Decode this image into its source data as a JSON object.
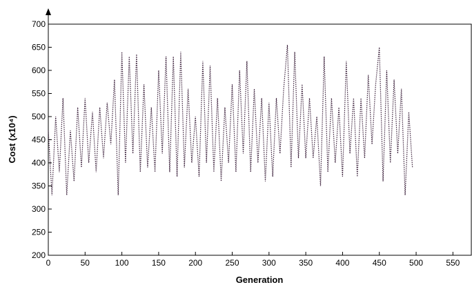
{
  "chart_data": {
    "type": "line",
    "xlabel": "Generation",
    "ylabel": "Cost (x10⁴)",
    "xlim": [
      0,
      575
    ],
    "ylim": [
      200,
      700
    ],
    "xticks": [
      0,
      50,
      100,
      150,
      200,
      250,
      300,
      350,
      400,
      450,
      500,
      550
    ],
    "yticks": [
      200,
      250,
      300,
      350,
      400,
      450,
      500,
      550,
      600,
      650,
      700
    ],
    "color": "#3a1f3a",
    "x": [
      0,
      5,
      10,
      15,
      20,
      25,
      30,
      35,
      40,
      45,
      50,
      55,
      60,
      65,
      70,
      75,
      80,
      85,
      90,
      95,
      100,
      105,
      110,
      115,
      120,
      125,
      130,
      135,
      140,
      145,
      150,
      155,
      160,
      165,
      170,
      175,
      180,
      185,
      190,
      195,
      200,
      205,
      210,
      215,
      220,
      225,
      230,
      235,
      240,
      245,
      250,
      255,
      260,
      265,
      270,
      275,
      280,
      285,
      290,
      295,
      300,
      305,
      310,
      315,
      320,
      325,
      330,
      335,
      340,
      345,
      350,
      355,
      360,
      365,
      370,
      375,
      380,
      385,
      390,
      395,
      400,
      405,
      410,
      415,
      420,
      425,
      430,
      435,
      440,
      445,
      450,
      455,
      460,
      465,
      470,
      475,
      480,
      485,
      490,
      495
    ],
    "values": [
      470,
      330,
      500,
      380,
      540,
      330,
      470,
      360,
      520,
      390,
      540,
      400,
      510,
      380,
      520,
      410,
      530,
      440,
      580,
      330,
      640,
      400,
      630,
      420,
      635,
      380,
      570,
      390,
      520,
      380,
      600,
      420,
      630,
      380,
      630,
      370,
      640,
      390,
      560,
      400,
      500,
      370,
      620,
      400,
      610,
      380,
      540,
      360,
      520,
      400,
      570,
      380,
      600,
      420,
      620,
      380,
      560,
      400,
      540,
      360,
      530,
      370,
      540,
      420,
      560,
      655,
      390,
      640,
      410,
      570,
      410,
      540,
      410,
      500,
      350,
      630,
      380,
      540,
      400,
      520,
      370,
      620,
      420,
      540,
      370,
      540,
      410,
      590,
      440,
      570,
      650,
      360,
      600,
      400,
      580,
      420,
      560,
      330,
      510,
      390
    ]
  }
}
